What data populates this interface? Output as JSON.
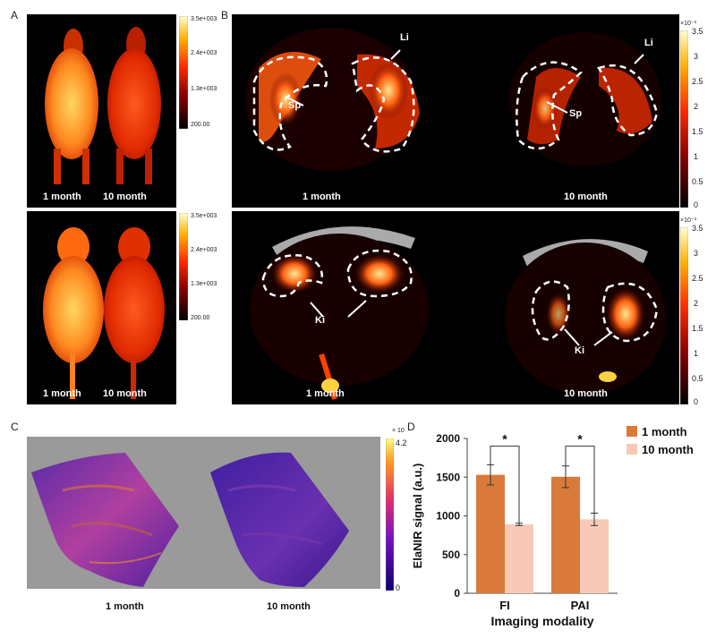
{
  "figure": {
    "panel_letters": [
      "A",
      "B",
      "C",
      "D"
    ]
  },
  "panel_a": {
    "colorbar_ticks": [
      "3.5e+003",
      "2.4e+003",
      "1.3e+003",
      "200.00"
    ],
    "top_labels": [
      "1 month",
      "10 month"
    ],
    "bottom_labels": [
      "1 month",
      "10 month"
    ]
  },
  "panel_b": {
    "colorbar_exponent": "×10⁻³",
    "colorbar_ticks": [
      "3.5",
      "3",
      "2.5",
      "2",
      "1.5",
      "1",
      "0.5",
      "0"
    ],
    "top": {
      "labels": [
        "1 month",
        "10 month"
      ],
      "organs": [
        "Li",
        "Sp",
        "Li",
        "Sp"
      ]
    },
    "bottom": {
      "labels": [
        "1 month",
        "10 month"
      ],
      "organs": [
        "Ki",
        "Ki"
      ]
    }
  },
  "panel_c": {
    "colorbar_exponent": "× 10",
    "colorbar_ticks": [
      "4.2",
      "0"
    ],
    "labels": [
      "1 month",
      "10 month"
    ]
  },
  "chart_data": {
    "type": "bar",
    "xlabel": "Imaging modality",
    "ylabel": "ElaNIR signal (a.u.)",
    "categories": [
      "FI",
      "PAI"
    ],
    "ylim": [
      0,
      2000
    ],
    "yticks": [
      0,
      500,
      1000,
      1500,
      2000
    ],
    "series": [
      {
        "name": "1 month",
        "values": [
          1530,
          1505
        ],
        "errors": [
          130,
          140
        ],
        "color": "#d97a3a"
      },
      {
        "name": "10 month",
        "values": [
          890,
          955
        ],
        "errors": [
          15,
          80
        ],
        "color": "#f7c9b6"
      }
    ],
    "significance": [
      "*",
      "*"
    ],
    "legend_position": "top-right"
  }
}
